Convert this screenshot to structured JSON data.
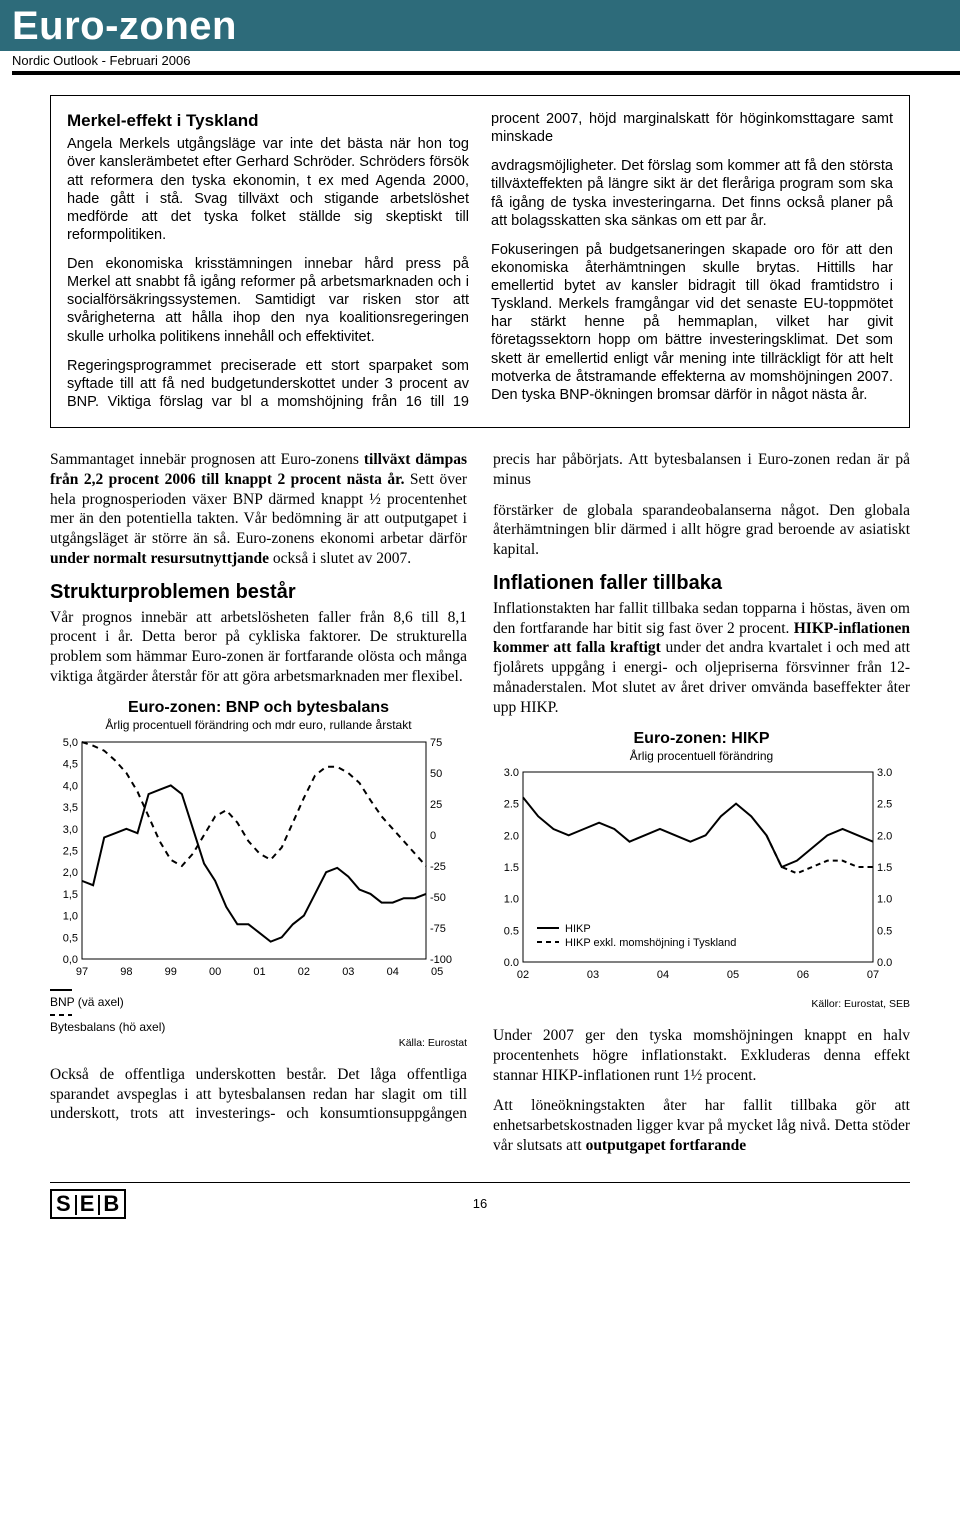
{
  "banner": {
    "title": "Euro-zonen"
  },
  "subline": "Nordic Outlook - Februari 2006",
  "box": {
    "heading": "Merkel-effekt i Tyskland",
    "p1": "Angela Merkels utgångsläge var inte det bästa när hon tog över kanslerämbetet efter Gerhard Schröder. Schröders försök att reformera den tyska ekonomin, t ex med Agenda 2000, hade gått i stå. Svag tillväxt och stigande arbetslöshet medförde att det tyska folket ställde sig skeptiskt till reformpolitiken.",
    "p2": "Den ekonomiska krisstämningen innebar hård press på Merkel att snabbt få igång reformer på arbetsmarknaden och i socialförsäkringssystemen. Samtidigt var risken stor att svårigheterna att hålla ihop den nya koalitionsregeringen skulle urholka politikens innehåll och effektivitet.",
    "p3": "Regeringsprogrammet preciserade ett stort sparpaket som syftade till att få ned budgetunderskottet under 3 procent av BNP. Viktiga förslag var bl a momshöjning från 16 till 19 procent 2007, höjd marginalskatt för höginkomsttagare samt minskade",
    "p4": "avdragsmöjligheter. Det förslag som kommer att få den största tillväxteffekten på längre sikt är det fleråriga program som ska få igång de tyska investeringarna. Det finns också planer på att bolagsskatten ska sänkas om ett par år.",
    "p5": "Fokuseringen på budgetsaneringen skapade oro för att den ekonomiska återhämtningen skulle brytas. Hittills har emellertid bytet av kansler bidragit till ökad framtidstro i Tyskland. Merkels framgångar vid det senaste EU-toppmötet har stärkt henne på hemmaplan, vilket har givit företagssektorn hopp om bättre investeringsklimat. Det som skett är emellertid enligt vår mening inte tillräckligt för att helt motverka de åtstramande effekterna av momshöjningen 2007. Den tyska BNP-ökningen bromsar därför in något nästa år."
  },
  "body": {
    "p1a": "Sammantaget innebär prognosen att Euro-zonens ",
    "p1b_bold": "tillväxt dämpas från 2,2 procent 2006 till knappt 2 procent nästa år.",
    "p1c": " Sett över hela prognosperioden växer BNP därmed knappt ½ procentenhet mer än den potentiella takten. Vår bedömning är att outputgapet i utgångsläget är större än så. Euro-zonens ekonomi arbetar därför ",
    "p1d_bold": "under normalt resursutnyttjande",
    "p1e": " också i slutet av 2007.",
    "h_struktur": "Strukturproblemen består",
    "p2": "Vår prognos innebär att arbetslösheten faller från 8,6 till 8,1 procent i år. Detta beror på cykliska faktorer. De strukturella problem som hämmar Euro-zonen är fortfarande olösta och många viktiga åtgärder återstår för att göra arbetsmarknaden mer flexibel.",
    "p3": "Också de offentliga underskotten består. Det låga offentliga sparandet avspeglas i att bytesbalansen redan har slagit om till underskott, trots att investerings- och konsumtionsuppgången precis har påbörjats. Att bytesbalansen i Euro-zonen redan är på minus",
    "p4": "förstärker de globala sparandeobalanserna något. Den globala återhämtningen blir därmed i allt högre grad beroende av asiatiskt kapital.",
    "h_infl": "Inflationen faller tillbaka",
    "p5a": "Inflationstakten har fallit tillbaka sedan topparna i höstas, även om den fortfarande har bitit sig fast över 2 procent. ",
    "p5b_bold": "HIKP-inflationen kommer att falla kraftigt",
    "p5c": " under det andra kvartalet i och med att fjolårets uppgång i energi- och oljepriserna försvinner från 12-månaderstalen. Mot slutet av året driver omvända baseffekter åter upp HIKP.",
    "p6": "Under 2007 ger den tyska momshöjningen knappt en halv procentenhets högre inflationstakt. Exkluderas denna effekt stannar HIKP-inflationen runt 1½ procent.",
    "p7a": "Att löneökningstakten åter har fallit tillbaka gör att enhetsarbetskostnaden ligger kvar på mycket låg nivå. Detta stöder vår slutsats att ",
    "p7b_bold": "outputgapet fortfarande"
  },
  "chart1": {
    "title": "Euro-zonen: BNP och bytesbalans",
    "subtitle": "Årlig procentuell förändring och mdr euro, rullande årstakt",
    "left_label": "",
    "right_label": "",
    "x_labels": [
      "97",
      "98",
      "99",
      "00",
      "01",
      "02",
      "03",
      "04",
      "05"
    ],
    "y_left": [
      "5,0",
      "4,5",
      "4,0",
      "3,5",
      "3,0",
      "2,5",
      "2,0",
      "1,5",
      "1,0",
      "0,5",
      "0,0"
    ],
    "y_right": [
      "75",
      "50",
      "25",
      "0",
      "-25",
      "-50",
      "-75",
      "-100"
    ],
    "bnp_series": [
      1.8,
      1.7,
      2.8,
      2.9,
      3.0,
      2.9,
      3.8,
      3.9,
      4.0,
      3.8,
      3.0,
      2.2,
      1.8,
      1.2,
      0.8,
      0.8,
      0.6,
      0.4,
      0.5,
      0.8,
      1.0,
      1.5,
      2.0,
      2.1,
      1.9,
      1.6,
      1.5,
      1.3,
      1.3,
      1.4,
      1.4,
      1.5
    ],
    "trade_series": [
      75,
      72,
      68,
      60,
      50,
      35,
      15,
      -5,
      -20,
      -25,
      -15,
      0,
      15,
      20,
      10,
      -5,
      -15,
      -20,
      -10,
      10,
      30,
      48,
      55,
      55,
      50,
      42,
      28,
      15,
      5,
      -5,
      -15,
      -25
    ],
    "legend_bnp": "BNP (vä axel)",
    "legend_trade": "Bytesbalans (hö axel)",
    "source": "Källa: Eurostat",
    "colors": {
      "line": "#000000",
      "grid": "#c8c8c8",
      "bg": "#ffffff"
    },
    "xlim": [
      0,
      31
    ],
    "ylim_left": [
      0,
      5
    ],
    "ylim_right": [
      -100,
      75
    ]
  },
  "chart2": {
    "title": "Euro-zonen: HIKP",
    "subtitle": "Årlig procentuell förändring",
    "x_labels": [
      "02",
      "03",
      "04",
      "05",
      "06",
      "07"
    ],
    "y_left": [
      "3.0",
      "2.5",
      "2.0",
      "1.5",
      "1.0",
      "0.5",
      "0.0"
    ],
    "y_right": [
      "3.0",
      "2.5",
      "2.0",
      "1.5",
      "1.0",
      "0.5",
      "0.0"
    ],
    "hikp_series": [
      2.6,
      2.3,
      2.1,
      2.0,
      2.1,
      2.2,
      2.1,
      1.9,
      2.0,
      2.1,
      2.0,
      1.9,
      2.0,
      2.3,
      2.5,
      2.3,
      2.0,
      1.5,
      1.6,
      1.8,
      2.0,
      2.1,
      2.0,
      1.9
    ],
    "hikp_ex_series": [
      2.6,
      2.3,
      2.1,
      2.0,
      2.1,
      2.2,
      2.1,
      1.9,
      2.0,
      2.1,
      2.0,
      1.9,
      2.0,
      2.3,
      2.5,
      2.3,
      2.0,
      1.5,
      1.4,
      1.5,
      1.6,
      1.6,
      1.5,
      1.5
    ],
    "legend_hikp": "HIKP",
    "legend_hikp_ex": "HIKP exkl. momshöjning i Tyskland",
    "source": "Källor: Eurostat, SEB",
    "colors": {
      "line": "#000000",
      "grid": "#c8c8c8",
      "bg": "#ffffff"
    },
    "xlim": [
      0,
      23
    ],
    "ylim": [
      0,
      3
    ]
  },
  "footer": {
    "logo": "S|E|B",
    "page": "16"
  }
}
